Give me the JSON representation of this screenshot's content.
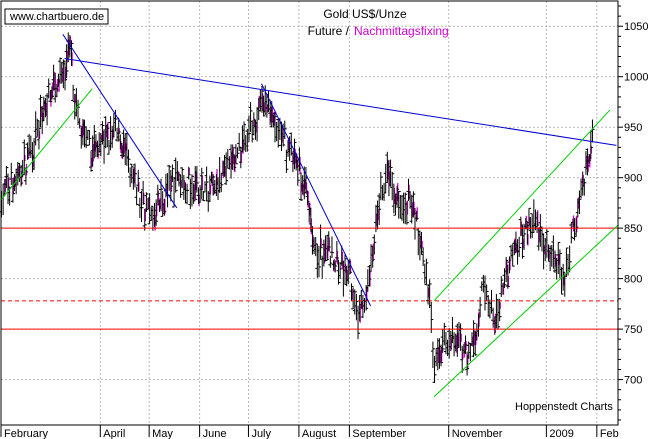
{
  "header": {
    "site": "www.chartbuero.de",
    "title": "Gold US$/Unze",
    "subtitle_future": "Future /",
    "subtitle_fixing": "Nachmittagsfixing"
  },
  "credit": "Hoppenstedt Charts",
  "colors": {
    "background": "#ffffff",
    "plot_border": "#000000",
    "grid": "#b8b8b8",
    "future_bars": "#000000",
    "fixing_bars": "#d000d0",
    "downtrend": "#0000d0",
    "channel": "#00d000",
    "support": "#ff0000",
    "subtitle_fixing": "#d000d0"
  },
  "chart_data": {
    "type": "ohlc",
    "title": "Gold US$/Unze",
    "subtitle": "Future / Nachmittagsfixing",
    "ylabel": "",
    "xlabel": "",
    "ylim": [
      655,
      1075
    ],
    "y_ticks": [
      700,
      750,
      800,
      850,
      900,
      950,
      1000,
      1050
    ],
    "x_range_day": [
      0,
      379
    ],
    "x_ticks": [
      {
        "label": "February",
        "day": 0
      },
      {
        "label": "April",
        "day": 61
      },
      {
        "label": "May",
        "day": 91
      },
      {
        "label": "June",
        "day": 122
      },
      {
        "label": "July",
        "day": 152
      },
      {
        "label": "August",
        "day": 183
      },
      {
        "label": "September",
        "day": 214
      },
      {
        "label": "November",
        "day": 275
      },
      {
        "label": "2009",
        "day": 335
      },
      {
        "label": "Feb",
        "day": 366
      }
    ],
    "grid": true,
    "axis_side": "right",
    "price_path": [
      [
        0,
        880
      ],
      [
        12,
        905
      ],
      [
        22,
        940
      ],
      [
        30,
        990
      ],
      [
        38,
        1000
      ],
      [
        42,
        1025
      ],
      [
        47,
        955
      ],
      [
        55,
        925
      ],
      [
        62,
        935
      ],
      [
        70,
        945
      ],
      [
        78,
        915
      ],
      [
        86,
        875
      ],
      [
        92,
        860
      ],
      [
        100,
        880
      ],
      [
        108,
        905
      ],
      [
        116,
        895
      ],
      [
        124,
        885
      ],
      [
        132,
        890
      ],
      [
        140,
        910
      ],
      [
        148,
        935
      ],
      [
        156,
        960
      ],
      [
        163,
        975
      ],
      [
        170,
        945
      ],
      [
        178,
        925
      ],
      [
        186,
        890
      ],
      [
        193,
        825
      ],
      [
        200,
        830
      ],
      [
        207,
        815
      ],
      [
        214,
        800
      ],
      [
        220,
        762
      ],
      [
        226,
        800
      ],
      [
        231,
        870
      ],
      [
        238,
        905
      ],
      [
        244,
        880
      ],
      [
        251,
        880
      ],
      [
        258,
        835
      ],
      [
        263,
        775
      ],
      [
        266,
        715
      ],
      [
        272,
        745
      ],
      [
        279,
        740
      ],
      [
        285,
        722
      ],
      [
        290,
        740
      ],
      [
        296,
        790
      ],
      [
        303,
        760
      ],
      [
        309,
        800
      ],
      [
        316,
        830
      ],
      [
        322,
        850
      ],
      [
        327,
        860
      ],
      [
        334,
        830
      ],
      [
        340,
        820
      ],
      [
        346,
        800
      ],
      [
        352,
        855
      ],
      [
        358,
        905
      ],
      [
        363,
        935
      ]
    ],
    "support_lines": [
      {
        "value": 850,
        "style": "solid"
      },
      {
        "value": 778,
        "style": "dashed"
      },
      {
        "value": 750,
        "style": "solid"
      }
    ],
    "trend_lines": [
      {
        "kind": "downtrend",
        "points": [
          [
            39,
            1018
          ],
          [
            378,
            932
          ]
        ]
      },
      {
        "kind": "downtrend",
        "points": [
          [
            38,
            1042
          ],
          [
            108,
            870
          ]
        ]
      },
      {
        "kind": "downtrend",
        "points": [
          [
            160,
            993
          ],
          [
            227,
            773
          ]
        ]
      },
      {
        "kind": "uptrend",
        "points": [
          [
            0,
            878
          ],
          [
            56,
            988
          ]
        ]
      },
      {
        "kind": "channel",
        "points": [
          [
            266,
            778
          ],
          [
            374,
            967
          ]
        ]
      },
      {
        "kind": "channel",
        "points": [
          [
            266,
            683
          ],
          [
            379,
            853
          ]
        ]
      }
    ]
  }
}
